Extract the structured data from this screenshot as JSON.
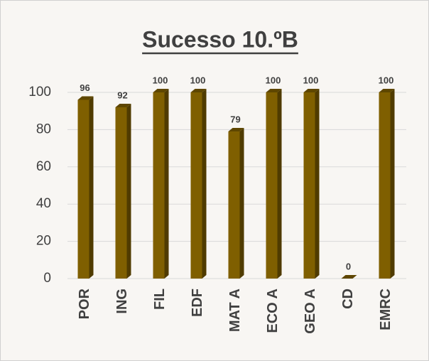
{
  "chart_data": {
    "type": "bar",
    "title": "Sucesso 10.ºB",
    "categories": [
      "POR",
      "ING",
      "FIL",
      "EDF",
      "MAT A",
      "ECO A",
      "GEO A",
      "CD",
      "EMRC"
    ],
    "values": [
      96,
      92,
      100,
      100,
      79,
      100,
      100,
      0,
      100
    ],
    "color": "#7f5f00",
    "ylim": [
      0,
      100
    ],
    "yticks": [
      0,
      20,
      40,
      60,
      80,
      100
    ],
    "grid": true
  }
}
